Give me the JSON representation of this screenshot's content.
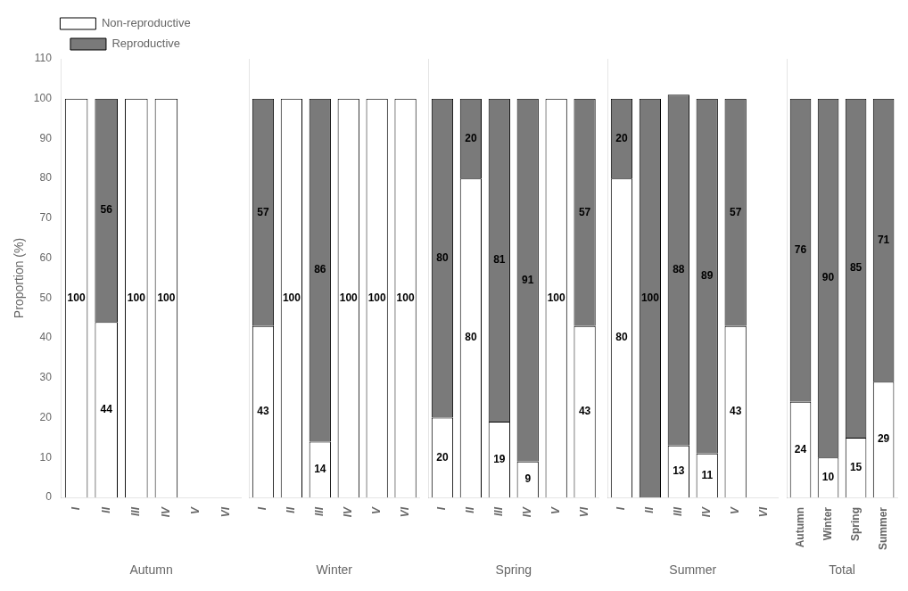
{
  "chart_data": [
    {
      "type": "bar",
      "stacked": true,
      "xlabel": "Autumn",
      "ylabel": "Proportion (%)",
      "legend": "top",
      "grid": false,
      "data_labels": true,
      "categories": [
        "I",
        "II",
        "III",
        "IV",
        "V",
        "VI"
      ],
      "series": [
        {
          "name": "Non-reproductive",
          "color": "#ffffff",
          "values": [
            100,
            44,
            100,
            100,
            0,
            0
          ]
        },
        {
          "name": "Reproductive",
          "color": "#7a7a7a",
          "values": [
            0,
            56,
            0,
            0,
            0,
            0
          ]
        }
      ],
      "ylim": [
        0,
        110
      ],
      "yticks": [
        0,
        10,
        20,
        30,
        40,
        50,
        60,
        70,
        80,
        90,
        100,
        110
      ]
    },
    {
      "type": "bar",
      "stacked": true,
      "xlabel": "Winter",
      "grid": false,
      "data_labels": true,
      "tick_labels": "x",
      "categories": [
        "I",
        "II",
        "III",
        "IV",
        "V",
        "VI"
      ],
      "series": [
        {
          "name": "Non-reproductive",
          "color": "#ffffff",
          "values": [
            43,
            100,
            14,
            100,
            100,
            100
          ]
        },
        {
          "name": "Reproductive",
          "color": "#7a7a7a",
          "values": [
            57,
            0,
            86,
            0,
            0,
            0
          ]
        }
      ],
      "ylim": [
        0,
        110
      ],
      "yticks": [
        0,
        10,
        20,
        30,
        40,
        50,
        60,
        70,
        80,
        90,
        100,
        110
      ]
    },
    {
      "type": "bar",
      "stacked": true,
      "xlabel": "Spring",
      "grid": false,
      "data_labels": true,
      "tick_labels": "x",
      "categories": [
        "I",
        "II",
        "III",
        "IV",
        "V",
        "VI"
      ],
      "series": [
        {
          "name": "Non-reproductive",
          "color": "#ffffff",
          "values": [
            20,
            80,
            19,
            9,
            100,
            43
          ]
        },
        {
          "name": "Reproductive",
          "color": "#7a7a7a",
          "values": [
            80,
            20,
            81,
            91,
            0,
            57
          ]
        }
      ],
      "ylim": [
        0,
        110
      ],
      "yticks": [
        0,
        10,
        20,
        30,
        40,
        50,
        60,
        70,
        80,
        90,
        100,
        110
      ]
    },
    {
      "type": "bar",
      "stacked": true,
      "xlabel": "Summer",
      "grid": false,
      "data_labels": true,
      "tick_labels": "x",
      "categories": [
        "I",
        "II",
        "III",
        "IV",
        "V",
        "VI"
      ],
      "series": [
        {
          "name": "Non-reproductive",
          "color": "#ffffff",
          "values": [
            80,
            0,
            13,
            11,
            43,
            0
          ]
        },
        {
          "name": "Reproductive",
          "color": "#7a7a7a",
          "values": [
            20,
            100,
            88,
            89,
            57,
            0
          ]
        }
      ],
      "ylim": [
        0,
        110
      ],
      "yticks": [
        0,
        10,
        20,
        30,
        40,
        50,
        60,
        70,
        80,
        90,
        100,
        110
      ]
    },
    {
      "type": "bar",
      "stacked": true,
      "xlabel": "Total",
      "grid": false,
      "data_labels": true,
      "tick_labels": "x",
      "categories": [
        "Autumn",
        "Winter",
        "Spring",
        "Summer"
      ],
      "series": [
        {
          "name": "Non-reproductive",
          "color": "#ffffff",
          "values": [
            24,
            10,
            15,
            29
          ]
        },
        {
          "name": "Reproductive",
          "color": "#7a7a7a",
          "values": [
            76,
            90,
            85,
            71
          ]
        }
      ],
      "ylim": [
        0,
        110
      ],
      "yticks": [
        0,
        10,
        20,
        30,
        40,
        50,
        60,
        70,
        80,
        90,
        100,
        110
      ]
    }
  ]
}
